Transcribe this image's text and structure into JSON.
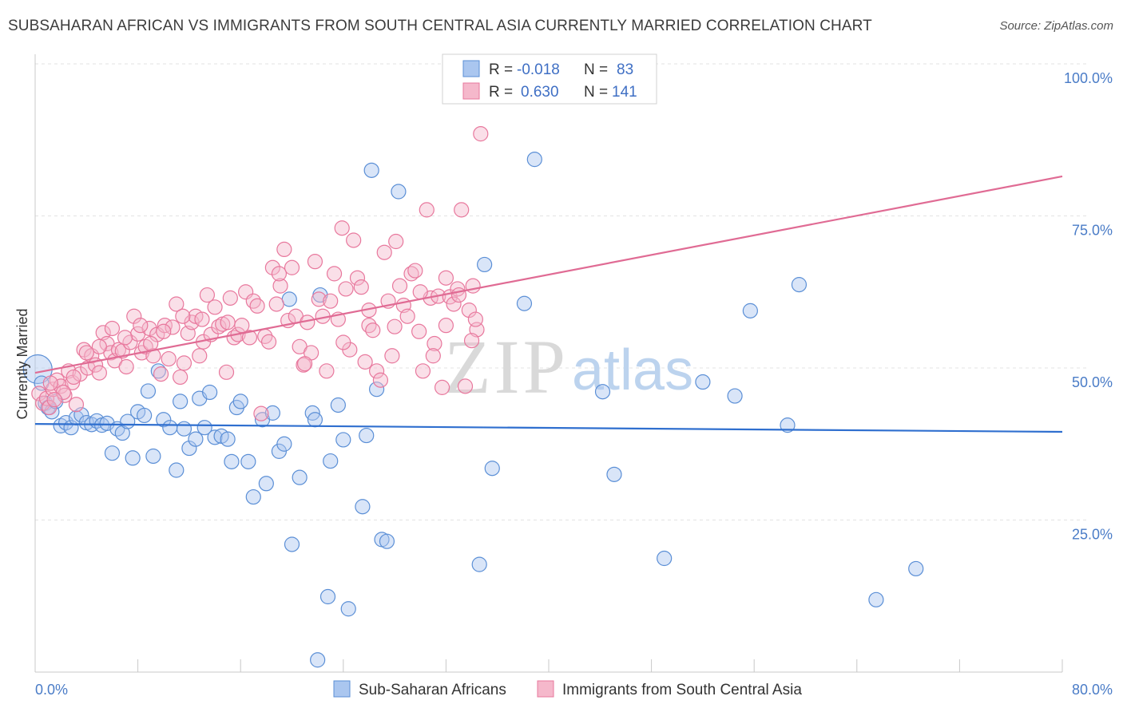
{
  "title": "SUBSAHARAN AFRICAN VS IMMIGRANTS FROM SOUTH CENTRAL ASIA CURRENTLY MARRIED CORRELATION CHART",
  "source": "Source: ZipAtlas.com",
  "watermark": {
    "zip": "ZIP",
    "atlas": "atlas"
  },
  "legend": {
    "rows": [
      {
        "r_label": "R =",
        "r_value": "-0.018",
        "n_label": "N =",
        "n_value": "83"
      },
      {
        "r_label": "R =",
        "r_value": "0.630",
        "n_label": "N =",
        "n_value": "141"
      }
    ]
  },
  "colors": {
    "blue_fill": "#aac6ef",
    "blue_stroke": "#5b8fd6",
    "blue_line": "#2f6fcf",
    "pink_fill": "#f5b8cb",
    "pink_stroke": "#e8789d",
    "pink_line": "#e06b94",
    "grid": "#e3e3e3",
    "axis_text": "#4a7cc7"
  },
  "chart_data": {
    "type": "scatter",
    "title": "SUBSAHARAN AFRICAN VS IMMIGRANTS FROM SOUTH CENTRAL ASIA CURRENTLY MARRIED CORRELATION CHART",
    "xlabel": "",
    "ylabel": "Currently Married",
    "xlim": [
      0,
      80
    ],
    "ylim": [
      0,
      100
    ],
    "x_tick_labels": [
      "0.0%",
      "80.0%"
    ],
    "y_tick_labels": [
      "25.0%",
      "50.0%",
      "75.0%",
      "100.0%"
    ],
    "y_ticks": [
      25,
      50,
      75,
      100
    ],
    "grid": true,
    "legend_position": "top-center",
    "series": [
      {
        "name": "Sub-Saharan Africans",
        "color": "#5b8fd6",
        "trend": {
          "x0": 0,
          "y0": 40.8,
          "x1": 80,
          "y1": 39.5
        },
        "points": [
          [
            0.2,
            49.8
          ],
          [
            0.5,
            47.5
          ],
          [
            0.8,
            44.2
          ],
          [
            1.0,
            43.5
          ],
          [
            1.3,
            42.8
          ],
          [
            1.6,
            44.5
          ],
          [
            2.0,
            40.5
          ],
          [
            2.4,
            41.0
          ],
          [
            2.8,
            40.2
          ],
          [
            3.2,
            41.8
          ],
          [
            3.6,
            42.3
          ],
          [
            4.0,
            41.0
          ],
          [
            4.4,
            40.7
          ],
          [
            4.8,
            41.3
          ],
          [
            5.2,
            40.6
          ],
          [
            5.6,
            40.9
          ],
          [
            6.0,
            36.0
          ],
          [
            6.4,
            40.0
          ],
          [
            6.8,
            39.3
          ],
          [
            7.2,
            41.2
          ],
          [
            7.6,
            35.2
          ],
          [
            8.0,
            42.8
          ],
          [
            8.5,
            42.2
          ],
          [
            8.8,
            46.2
          ],
          [
            9.2,
            35.5
          ],
          [
            9.6,
            49.5
          ],
          [
            10.0,
            41.5
          ],
          [
            10.5,
            40.2
          ],
          [
            11.0,
            33.2
          ],
          [
            11.3,
            44.5
          ],
          [
            11.6,
            40.0
          ],
          [
            12.0,
            36.8
          ],
          [
            12.5,
            38.3
          ],
          [
            12.8,
            45.0
          ],
          [
            13.2,
            40.2
          ],
          [
            13.6,
            46.0
          ],
          [
            14.0,
            38.6
          ],
          [
            14.5,
            38.8
          ],
          [
            15.0,
            38.3
          ],
          [
            15.3,
            34.6
          ],
          [
            15.7,
            43.5
          ],
          [
            16.0,
            44.5
          ],
          [
            16.6,
            34.6
          ],
          [
            17.0,
            28.8
          ],
          [
            17.7,
            41.5
          ],
          [
            18.0,
            31.0
          ],
          [
            18.5,
            42.6
          ],
          [
            19.0,
            36.3
          ],
          [
            19.4,
            37.5
          ],
          [
            19.8,
            61.3
          ],
          [
            20.0,
            21.0
          ],
          [
            20.6,
            32.0
          ],
          [
            21.6,
            42.6
          ],
          [
            21.8,
            41.5
          ],
          [
            22.2,
            62.0
          ],
          [
            22.8,
            12.4
          ],
          [
            23.0,
            34.7
          ],
          [
            23.6,
            43.9
          ],
          [
            24.0,
            38.2
          ],
          [
            24.4,
            10.4
          ],
          [
            25.5,
            27.2
          ],
          [
            25.8,
            38.9
          ],
          [
            26.2,
            82.5
          ],
          [
            26.6,
            46.5
          ],
          [
            27.0,
            21.8
          ],
          [
            27.4,
            21.5
          ],
          [
            28.3,
            79.0
          ],
          [
            34.6,
            17.7
          ],
          [
            35.0,
            67.0
          ],
          [
            35.6,
            33.5
          ],
          [
            38.1,
            60.6
          ],
          [
            38.9,
            84.3
          ],
          [
            44.2,
            46.1
          ],
          [
            45.1,
            32.5
          ],
          [
            49.0,
            18.7
          ],
          [
            52.0,
            47.7
          ],
          [
            54.5,
            45.4
          ],
          [
            55.7,
            59.4
          ],
          [
            58.6,
            40.6
          ],
          [
            59.5,
            63.7
          ],
          [
            65.5,
            11.9
          ],
          [
            68.6,
            17.0
          ],
          [
            22.0,
            2.0
          ]
        ]
      },
      {
        "name": "Immigrants from South Central Asia",
        "color": "#e8789d",
        "trend": {
          "x0": 0,
          "y0": 49.2,
          "x1": 80,
          "y1": 81.5
        },
        "points": [
          [
            0.3,
            45.8
          ],
          [
            0.6,
            44.2
          ],
          [
            0.9,
            45.0
          ],
          [
            1.1,
            43.5
          ],
          [
            1.4,
            46.5
          ],
          [
            1.7,
            48.0
          ],
          [
            2.0,
            47.0
          ],
          [
            2.3,
            45.5
          ],
          [
            2.6,
            49.5
          ],
          [
            2.9,
            47.6
          ],
          [
            3.2,
            44.0
          ],
          [
            3.5,
            49.0
          ],
          [
            3.8,
            53.0
          ],
          [
            4.1,
            50.0
          ],
          [
            4.4,
            52.0
          ],
          [
            4.7,
            50.5
          ],
          [
            5.0,
            49.2
          ],
          [
            5.3,
            55.8
          ],
          [
            5.6,
            54.0
          ],
          [
            5.9,
            52.5
          ],
          [
            6.2,
            51.2
          ],
          [
            6.5,
            53.0
          ],
          [
            6.8,
            52.8
          ],
          [
            7.1,
            50.2
          ],
          [
            7.4,
            54.2
          ],
          [
            7.7,
            58.5
          ],
          [
            8.0,
            55.6
          ],
          [
            8.3,
            52.5
          ],
          [
            8.6,
            53.5
          ],
          [
            8.9,
            56.5
          ],
          [
            9.2,
            52.0
          ],
          [
            9.5,
            55.5
          ],
          [
            9.8,
            49.0
          ],
          [
            10.1,
            57.0
          ],
          [
            10.4,
            51.5
          ],
          [
            10.7,
            56.7
          ],
          [
            11.0,
            60.5
          ],
          [
            11.3,
            48.5
          ],
          [
            11.6,
            50.8
          ],
          [
            11.9,
            55.7
          ],
          [
            12.2,
            57.5
          ],
          [
            12.5,
            58.5
          ],
          [
            12.8,
            52.0
          ],
          [
            13.1,
            54.3
          ],
          [
            13.4,
            62.0
          ],
          [
            13.7,
            55.5
          ],
          [
            14.0,
            60.0
          ],
          [
            14.3,
            56.8
          ],
          [
            14.6,
            57.2
          ],
          [
            14.9,
            49.3
          ],
          [
            15.2,
            61.5
          ],
          [
            15.5,
            55.0
          ],
          [
            15.8,
            55.5
          ],
          [
            16.1,
            57.0
          ],
          [
            16.4,
            62.5
          ],
          [
            16.7,
            55.0
          ],
          [
            17.0,
            61.0
          ],
          [
            17.3,
            60.2
          ],
          [
            17.6,
            42.5
          ],
          [
            17.9,
            55.2
          ],
          [
            18.2,
            54.3
          ],
          [
            18.5,
            66.5
          ],
          [
            18.8,
            60.5
          ],
          [
            19.1,
            63.5
          ],
          [
            19.4,
            69.5
          ],
          [
            19.7,
            57.8
          ],
          [
            20.0,
            66.5
          ],
          [
            20.3,
            58.5
          ],
          [
            20.6,
            53.5
          ],
          [
            20.9,
            50.5
          ],
          [
            21.2,
            57.5
          ],
          [
            21.5,
            52.5
          ],
          [
            21.8,
            67.5
          ],
          [
            22.1,
            61.3
          ],
          [
            22.4,
            58.5
          ],
          [
            22.7,
            49.5
          ],
          [
            23.0,
            61.0
          ],
          [
            23.3,
            65.5
          ],
          [
            23.6,
            58.0
          ],
          [
            23.9,
            73.0
          ],
          [
            24.2,
            63.0
          ],
          [
            24.5,
            53.0
          ],
          [
            24.8,
            71.0
          ],
          [
            25.1,
            64.8
          ],
          [
            25.4,
            63.3
          ],
          [
            25.7,
            51.0
          ],
          [
            26.0,
            57.0
          ],
          [
            26.3,
            56.2
          ],
          [
            26.6,
            49.5
          ],
          [
            26.9,
            48.0
          ],
          [
            27.2,
            69.0
          ],
          [
            27.5,
            61.0
          ],
          [
            27.8,
            52.0
          ],
          [
            28.1,
            70.8
          ],
          [
            28.4,
            63.5
          ],
          [
            28.7,
            60.3
          ],
          [
            29.0,
            58.5
          ],
          [
            29.3,
            65.5
          ],
          [
            29.6,
            66.0
          ],
          [
            29.9,
            56.0
          ],
          [
            30.2,
            49.5
          ],
          [
            30.5,
            76.0
          ],
          [
            30.8,
            61.5
          ],
          [
            31.1,
            54.0
          ],
          [
            31.4,
            61.8
          ],
          [
            31.7,
            46.8
          ],
          [
            32.0,
            64.8
          ],
          [
            32.3,
            61.7
          ],
          [
            32.6,
            60.5
          ],
          [
            32.9,
            63.0
          ],
          [
            33.2,
            76.0
          ],
          [
            33.5,
            47.0
          ],
          [
            33.8,
            59.5
          ],
          [
            34.1,
            63.5
          ],
          [
            34.4,
            56.3
          ],
          [
            34.7,
            88.5
          ],
          [
            15.0,
            57.5
          ],
          [
            13.0,
            58.0
          ],
          [
            11.5,
            58.5
          ],
          [
            10.0,
            56.0
          ],
          [
            9.0,
            54.0
          ],
          [
            8.2,
            57.0
          ],
          [
            7.0,
            55.0
          ],
          [
            6.0,
            56.5
          ],
          [
            5.0,
            53.5
          ],
          [
            4.0,
            52.5
          ],
          [
            3.0,
            48.5
          ],
          [
            2.2,
            46.0
          ],
          [
            1.5,
            44.8
          ],
          [
            1.2,
            47.5
          ],
          [
            19.0,
            65.5
          ],
          [
            21.0,
            50.7
          ],
          [
            24.0,
            54.2
          ],
          [
            26.0,
            59.5
          ],
          [
            28.0,
            56.8
          ],
          [
            30.0,
            62.5
          ],
          [
            31.0,
            52.0
          ],
          [
            32.0,
            57.0
          ],
          [
            33.0,
            62.0
          ],
          [
            34.0,
            54.5
          ],
          [
            34.3,
            58.0
          ]
        ]
      }
    ]
  }
}
